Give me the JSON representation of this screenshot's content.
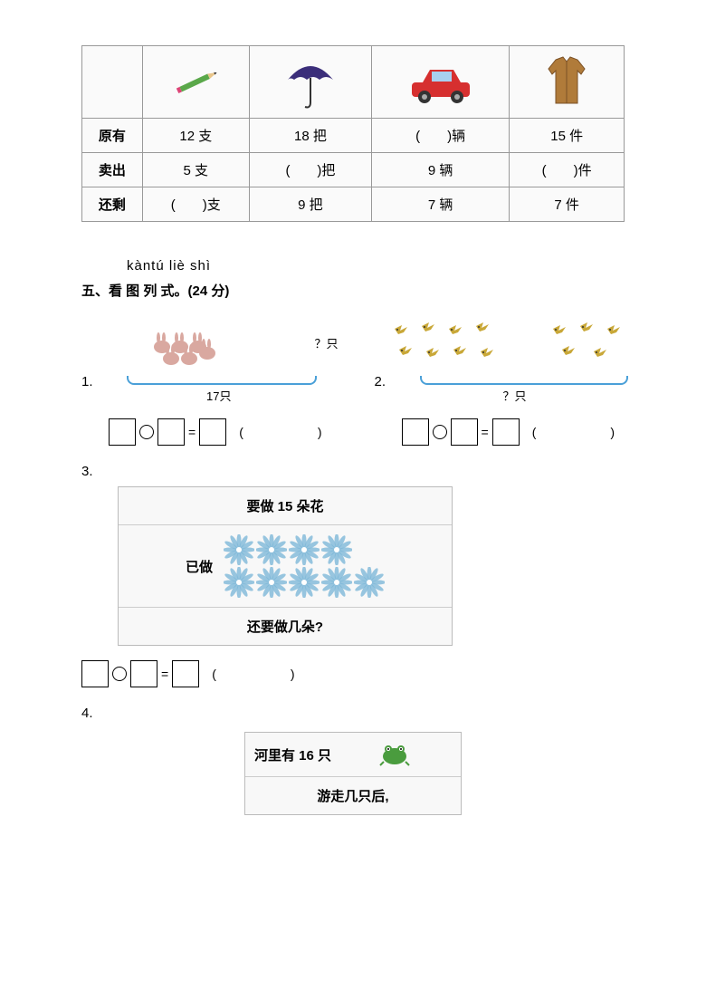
{
  "table": {
    "rows": [
      "原有",
      "卖出",
      "还剩"
    ],
    "cells": {
      "r1": [
        "12 支",
        "18 把",
        "(　　)辆",
        "15 件"
      ],
      "r2": [
        "5 支",
        "(　　)把",
        "9 辆",
        "(　　)件"
      ],
      "r3": [
        "(　　)支",
        "9 把",
        "7 辆",
        "7 件"
      ]
    },
    "icons": [
      "pencil",
      "umbrella",
      "car",
      "jacket"
    ],
    "icon_colors": {
      "pencil": "#5aa84a",
      "umbrella": "#3b2e7a",
      "car_body": "#d62f2f",
      "car_roof": "#2a6bd4",
      "jacket": "#b07b3a"
    }
  },
  "section": {
    "pinyin": "kàntú liè shì",
    "title": "五、看 图 列 式。(24 分)"
  },
  "q1": {
    "num": "1.",
    "qmark": "？只",
    "total": "17只",
    "rabbit_count": 6,
    "rabbit_color": "#d9a8a0"
  },
  "q2": {
    "num": "2.",
    "qlabel": "？只",
    "left_count": 8,
    "right_count": 5,
    "bird_color": "#c9a838"
  },
  "q3": {
    "num": "3.",
    "title": "要做 15 朵花",
    "done_label": "已做",
    "row1": 4,
    "row2": 5,
    "question": "还要做几朵?",
    "flower_color": "#7eb8d8"
  },
  "q4": {
    "num": "4.",
    "line1": "河里有 16 只",
    "line2": "游走几只后,",
    "frog_color": "#4a9c3e"
  },
  "eq": {
    "equals": "=",
    "paren": "(　　)"
  }
}
